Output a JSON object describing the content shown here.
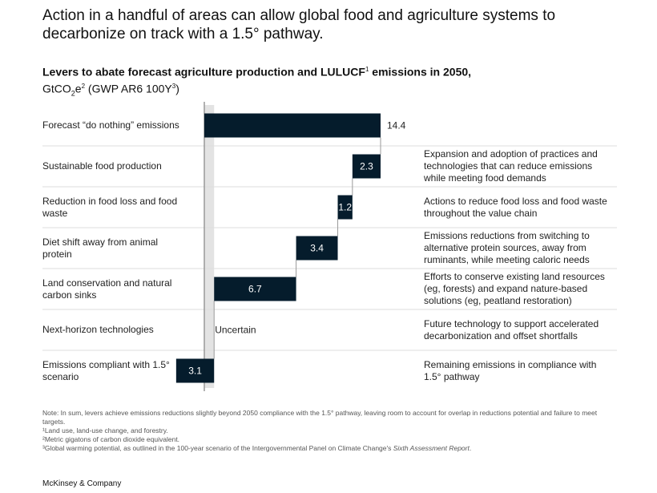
{
  "title": "Action in a handful of areas can allow global food and agriculture systems to decarbonize on track with a 1.5° pathway.",
  "subtitle": {
    "bold": "Levers to abate forecast agriculture production and LULUCF",
    "sup1": "1",
    "bold2": " emissions in 2050,",
    "unit_a": "GtCO",
    "unit_sub": "2",
    "unit_b": "e",
    "sup2": "2",
    "unit_c": " (GWP AR6 100Y",
    "sup3": "3",
    "unit_d": ")"
  },
  "chart_data": {
    "type": "bar",
    "subtype": "waterfall",
    "xlabel": "",
    "ylabel": "GtCO2e",
    "categories": [
      "Forecast “do nothing” emissions",
      "Sustainable food production",
      "Reduction in food loss and food waste",
      "Diet shift away from animal protein",
      "Land conservation and natural carbon sinks",
      "Next-horizon technologies",
      "Emissions compliant with 1.5° scenario"
    ],
    "values": [
      14.4,
      -2.3,
      -1.2,
      -3.4,
      -6.7,
      null,
      3.1
    ],
    "value_labels": [
      "14.4",
      "2.3",
      "1.2",
      "3.4",
      "6.7",
      "Uncertain",
      "3.1"
    ],
    "descriptions": [
      "",
      "Expansion and adoption of practices and technologies that can reduce emissions while meeting food demands",
      "Actions to reduce food loss and food waste throughout the value chain",
      "Emissions reductions from switching to alternative protein sources, away from ruminants, while meeting caloric needs",
      "Efforts to conserve existing land resources (eg, forests) and expand nature-based solutions (eg, peatland restoration)",
      "Future technology to support accelerated decarbonization and offset shortfalls",
      "Remaining emissions in compliance with 1.5° pathway"
    ],
    "xlim": [
      -2.3,
      16
    ],
    "grid": false,
    "colors": {
      "bar": "#051c2c",
      "band": "#e3e3e3",
      "axis": "#999999",
      "divider": "#dddddd"
    }
  },
  "notes": [
    "Note: In sum, levers achieve emissions reductions slightly beyond 2050 compliance with the 1.5° pathway, leaving room to account for overlap in reductions potential and failure to meet targets.",
    "¹Land use, land-use change, and forestry.",
    "²Metric gigatons of carbon dioxide equivalent.",
    "³Global warming potential, as outlined in the 100-year scenario of the Intergovernmental Panel on Climate Change's ",
    "Sixth Assessment Report",
    "."
  ],
  "brand": "McKinsey & Company"
}
